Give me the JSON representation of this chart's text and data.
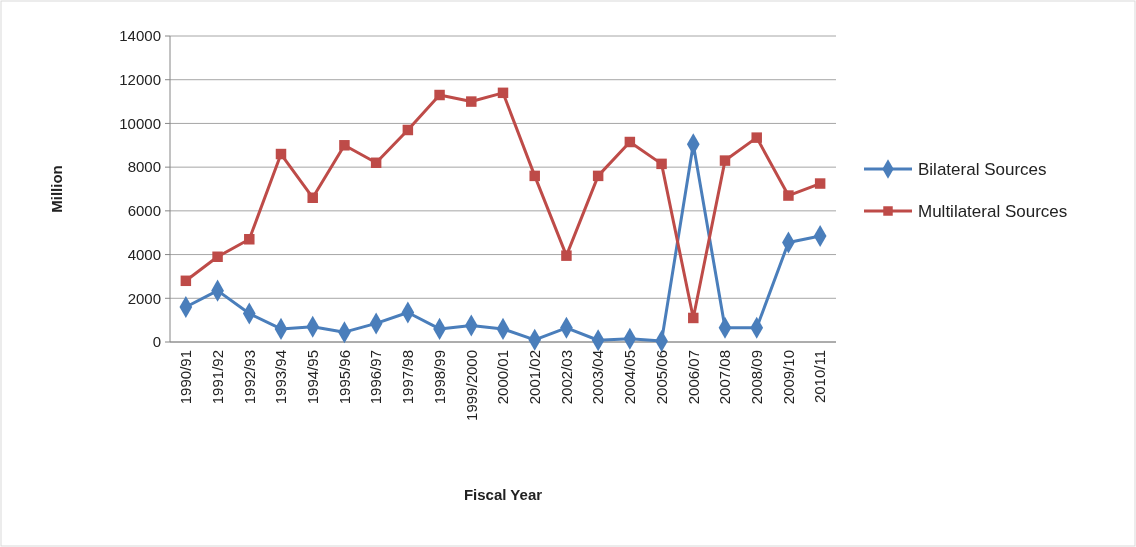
{
  "chart_data": {
    "type": "line",
    "xlabel": "Fiscal Year",
    "ylabel": "Million",
    "categories": [
      "1990/91",
      "1991/92",
      "1992/93",
      "1993/94",
      "1994/95",
      "1995/96",
      "1996/97",
      "1997/98",
      "1998/99",
      "1999/2000",
      "2000/01",
      "2001/02",
      "2002/03",
      "2003/04",
      "2004/05",
      "2005/06",
      "2006/07",
      "2007/08",
      "2008/09",
      "2009/10",
      "2010/11"
    ],
    "series": [
      {
        "name": "Bilateral Sources",
        "color": "#4a7ebb",
        "marker": "diamond",
        "values": [
          1600,
          2350,
          1300,
          600,
          700,
          450,
          850,
          1350,
          600,
          750,
          600,
          100,
          650,
          80,
          150,
          50,
          9050,
          650,
          650,
          4550,
          4850
        ]
      },
      {
        "name": "Multilateral Sources",
        "color": "#be4b48",
        "marker": "square",
        "values": [
          2800,
          3900,
          4700,
          8600,
          6600,
          9000,
          8200,
          9700,
          11300,
          11000,
          11400,
          7600,
          3950,
          7600,
          9150,
          8150,
          1100,
          8300,
          9350,
          6700,
          7250
        ]
      }
    ],
    "ylim": [
      0,
      14000
    ],
    "yticks": [
      0,
      2000,
      4000,
      6000,
      8000,
      10000,
      12000,
      14000
    ],
    "grid": "y",
    "legend": "right",
    "line_style": "solid"
  }
}
